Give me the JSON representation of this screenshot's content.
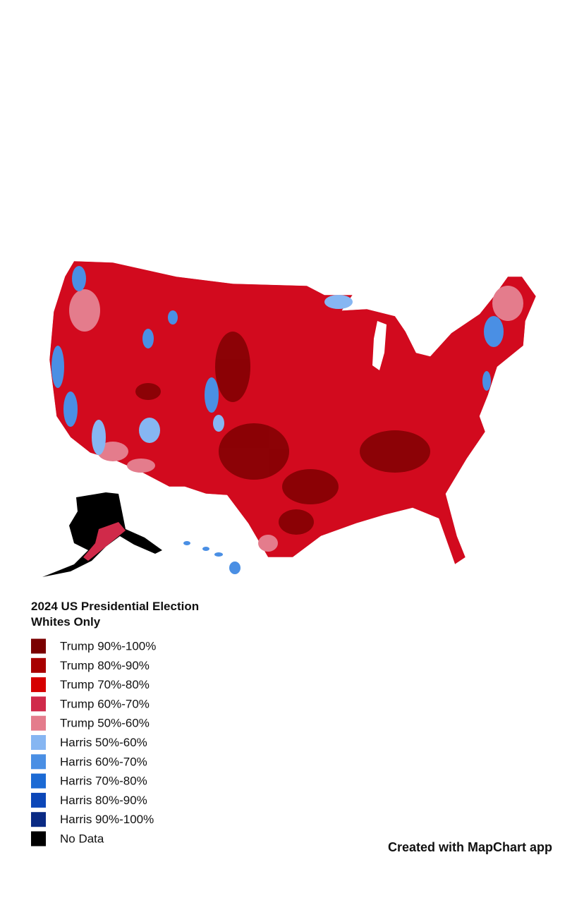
{
  "legend": {
    "title": [
      "2024 US Presidential Election",
      "Whites Only"
    ],
    "items": [
      {
        "label": "Trump 90%-100%",
        "color": "#7a0000"
      },
      {
        "label": "Trump 80%-90%",
        "color": "#a80000"
      },
      {
        "label": "Trump 70%-80%",
        "color": "#d60000"
      },
      {
        "label": "Trump 60%-70%",
        "color": "#d02a4a"
      },
      {
        "label": "Trump 50%-60%",
        "color": "#e47c8c"
      },
      {
        "label": "Harris 50%-60%",
        "color": "#86b6f2"
      },
      {
        "label": "Harris 60%-70%",
        "color": "#4a8fe4"
      },
      {
        "label": "Harris 70%-80%",
        "color": "#1c6ad4"
      },
      {
        "label": "Harris 80%-90%",
        "color": "#0c47b8"
      },
      {
        "label": "Harris 90%-100%",
        "color": "#0a2a84"
      },
      {
        "label": "No Data",
        "color": "#000000"
      }
    ]
  },
  "credit": "Created with MapChart app"
}
